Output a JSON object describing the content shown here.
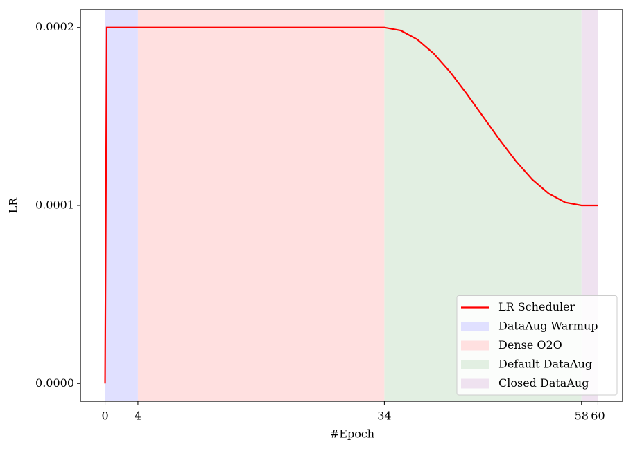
{
  "chart_data": {
    "type": "line",
    "xlabel": "#Epoch",
    "ylabel": "LR",
    "xlim": [
      -3,
      63
    ],
    "ylim": [
      -1e-05,
      0.00021
    ],
    "xticks": [
      0,
      4,
      34,
      58,
      60
    ],
    "yticks": [
      {
        "value": 0,
        "label": "0.0000"
      },
      {
        "value": 0.0001,
        "label": "0.0001"
      },
      {
        "value": 0.0002,
        "label": "0.0002"
      }
    ],
    "x": [
      0,
      0.2,
      34,
      36,
      38,
      40,
      42,
      44,
      46,
      48,
      50,
      52,
      54,
      56,
      58,
      60
    ],
    "series": [
      {
        "name": "LR Scheduler",
        "color": "#ff0000",
        "values": [
          0,
          0.0002,
          0.0002,
          0.0001983,
          0.0001933,
          0.0001854,
          0.000175,
          0.0001629,
          0.00015,
          0.0001371,
          0.000125,
          0.0001146,
          0.0001067,
          0.0001017,
          0.0001,
          0.0001
        ]
      }
    ],
    "spans": [
      {
        "name": "DataAug Warmup",
        "color": "#e0e0ff",
        "start": 0,
        "end": 4
      },
      {
        "name": "Dense O2O",
        "color": "#ffe0e0",
        "start": 4,
        "end": 34
      },
      {
        "name": "Default DataAug",
        "color": "#e2efe2",
        "start": 34,
        "end": 58
      },
      {
        "name": "Closed DataAug",
        "color": "#efe2f0",
        "start": 58,
        "end": 60
      }
    ],
    "legend": "lower right"
  }
}
